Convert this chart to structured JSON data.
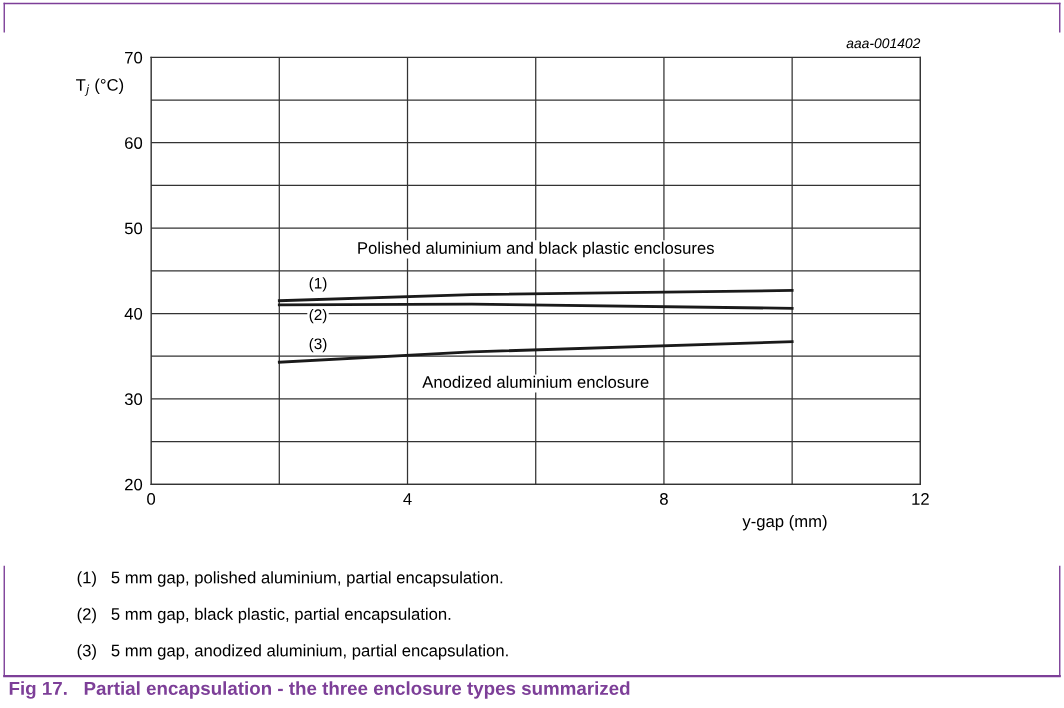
{
  "chart_data": {
    "type": "line",
    "title": "Fig 17.   Partial encapsulation - the three enclosure types summarized",
    "xlabel": "y-gap (mm)",
    "ylabel": "T$_{j}$ (°C)",
    "series": [
      {
        "color": "#1a1a1a",
        "x": [
          2,
          5,
          10
        ],
        "values": [
          41.5,
          42.2,
          42.7
        ]
      },
      {
        "color": "#1a1a1a",
        "x": [
          2,
          5,
          10
        ],
        "values": [
          41.0,
          41.1,
          40.6
        ]
      },
      {
        "color": "#1a1a1a",
        "x": [
          2,
          5,
          10
        ],
        "values": [
          34.3,
          35.5,
          36.7
        ]
      }
    ],
    "xlim": [
      0,
      12
    ],
    "ylim": [
      20,
      70
    ],
    "xticks": [
      0,
      {
        "value": 2,
        "label": null
      },
      4,
      {
        "value": 6,
        "label": null
      },
      8,
      {
        "value": 10,
        "label": null
      },
      12
    ],
    "yticks": [
      20,
      {
        "value": 25,
        "label": null
      },
      30,
      {
        "value": 35,
        "label": null
      },
      40,
      {
        "value": 45,
        "label": null
      },
      50,
      {
        "value": 55,
        "label": null
      },
      60,
      {
        "value": 65,
        "label": null
      },
      70
    ],
    "grid": true,
    "marker": "none",
    "line_style": "solid",
    "annotations": [
      "aaa-001402",
      "(1)",
      "(2)",
      "(3)",
      "Polished aluminium and black plastic enclosures",
      "Anodized aluminium enclosure",
      "(1)   5 mm gap, polished aluminium, partial encapsulation.",
      "(2)   5 mm gap, black plastic, partial encapsulation.",
      "(3)   5 mm gap, anodized aluminium, partial encapsulation."
    ]
  }
}
